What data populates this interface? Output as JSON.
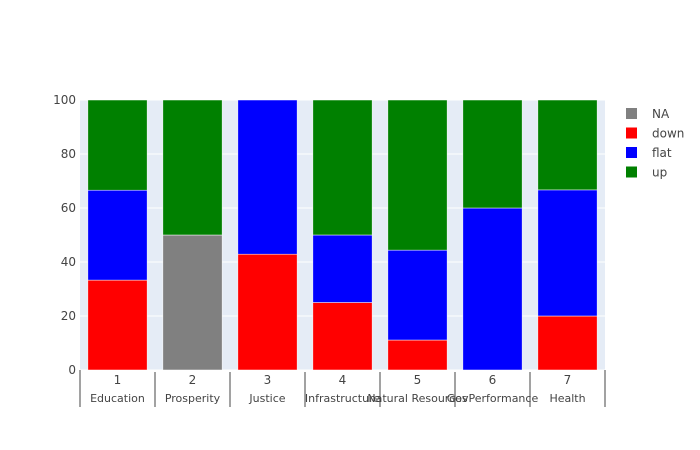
{
  "chart_data": {
    "type": "bar",
    "barmode": "stack",
    "x_top_labels": [
      "1",
      "2",
      "3",
      "4",
      "5",
      "6",
      "7"
    ],
    "x_bottom_labels": [
      "Education",
      "Prosperity",
      "Justice",
      "Infrastructure",
      "Natural Resources",
      "GovPerformance",
      "Health"
    ],
    "ylim": [
      0,
      100
    ],
    "y_ticks": [
      0,
      20,
      40,
      60,
      80,
      100
    ],
    "grid": true,
    "legend_position": "top-right",
    "series": [
      {
        "name": "NA",
        "color": "#808080",
        "values": [
          0,
          50,
          0,
          0,
          0,
          0,
          0
        ]
      },
      {
        "name": "down",
        "color": "#ff0000",
        "values": [
          33.3,
          0,
          42.9,
          25,
          11.1,
          0,
          20
        ]
      },
      {
        "name": "flat",
        "color": "#0000ff",
        "values": [
          33.3,
          0,
          57.1,
          25,
          33.3,
          60,
          46.7
        ]
      },
      {
        "name": "up",
        "color": "#008000",
        "values": [
          33.4,
          50,
          0,
          50,
          55.6,
          40,
          33.3
        ]
      }
    ]
  }
}
